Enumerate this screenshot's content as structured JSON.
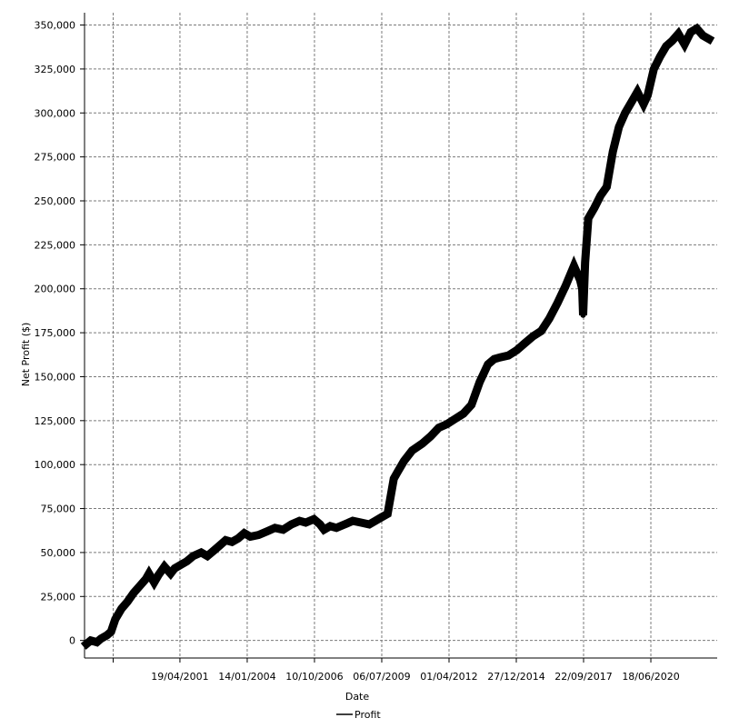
{
  "chart_data": {
    "type": "line",
    "title": "",
    "xlabel": "Date",
    "ylabel": "Net Profit ($)",
    "ylim": [
      -10000,
      357000
    ],
    "y_ticks": [
      0,
      25000,
      50000,
      75000,
      100000,
      125000,
      150000,
      175000,
      200000,
      225000,
      250000,
      275000,
      300000,
      325000,
      350000
    ],
    "y_tick_labels": [
      "0",
      "25,000",
      "50,000",
      "75,000",
      "100,000",
      "125,000",
      "150,000",
      "175,000",
      "200,000",
      "225,000",
      "250,000",
      "275,000",
      "300,000",
      "325,000",
      "350,000"
    ],
    "x_range": [
      "1997-06-01",
      "2023-03-01"
    ],
    "x_ticks": [
      "1998-08-01",
      "2001-04-19",
      "2004-01-14",
      "2006-10-10",
      "2009-07-06",
      "2012-04-01",
      "2014-12-27",
      "2017-09-22",
      "2020-06-18"
    ],
    "x_tick_labels": [
      "",
      "19/04/2001",
      "14/01/2004",
      "10/10/2006",
      "06/07/2009",
      "01/04/2012",
      "27/12/2014",
      "22/09/2017",
      "18/06/2020"
    ],
    "grid": true,
    "legend": {
      "position": "bottom-center"
    },
    "series": [
      {
        "name": "Profit",
        "color": "#000000",
        "x": [
          "1997-07-01",
          "1997-09-01",
          "1997-12-01",
          "1998-02-01",
          "1998-05-01",
          "1998-07-01",
          "1998-09-01",
          "1998-12-01",
          "1999-03-01",
          "1999-06-01",
          "1999-09-01",
          "1999-12-01",
          "2000-01-15",
          "2000-04-01",
          "2000-06-01",
          "2000-09-01",
          "2000-12-01",
          "2001-02-01",
          "2001-05-01",
          "2001-08-01",
          "2001-11-01",
          "2002-03-01",
          "2002-06-01",
          "2002-09-01",
          "2002-12-01",
          "2003-03-01",
          "2003-06-01",
          "2003-09-01",
          "2003-12-01",
          "2004-03-01",
          "2004-07-01",
          "2004-11-01",
          "2005-03-01",
          "2005-07-01",
          "2005-11-01",
          "2006-03-01",
          "2006-06-01",
          "2006-10-01",
          "2007-01-01",
          "2007-03-01",
          "2007-06-01",
          "2007-09-01",
          "2008-01-01",
          "2008-05-01",
          "2008-09-01",
          "2009-01-01",
          "2009-04-01",
          "2009-07-01",
          "2009-10-01",
          "2010-01-01",
          "2010-03-01",
          "2010-06-01",
          "2010-10-01",
          "2011-03-01",
          "2011-07-01",
          "2011-11-01",
          "2012-03-01",
          "2012-07-01",
          "2012-11-01",
          "2013-03-01",
          "2013-07-01",
          "2013-11-01",
          "2014-02-01",
          "2014-05-01",
          "2014-09-01",
          "2015-01-01",
          "2015-05-01",
          "2015-09-01",
          "2016-01-01",
          "2016-05-01",
          "2016-09-01",
          "2017-01-01",
          "2017-05-01",
          "2017-08-01",
          "2017-09-01",
          "2017-09-15",
          "2017-10-15",
          "2017-12-01",
          "2018-03-01",
          "2018-06-01",
          "2018-09-01",
          "2018-12-01",
          "2019-03-01",
          "2019-06-01",
          "2019-09-01",
          "2019-12-01",
          "2020-03-01",
          "2020-05-01",
          "2020-08-01",
          "2020-11-01",
          "2021-02-01",
          "2021-05-01",
          "2021-08-01",
          "2021-11-01",
          "2022-02-01",
          "2022-05-01",
          "2022-08-01",
          "2022-11-01"
        ],
        "values": [
          -2000,
          0,
          -1000,
          1000,
          3000,
          5000,
          12000,
          18000,
          22000,
          27000,
          31000,
          35000,
          38000,
          33000,
          37000,
          42000,
          38000,
          41000,
          43000,
          45000,
          48000,
          50000,
          48000,
          51000,
          54000,
          57000,
          56000,
          58000,
          61000,
          59000,
          60000,
          62000,
          64000,
          63000,
          66000,
          68000,
          67000,
          69000,
          66000,
          63000,
          65000,
          64000,
          66000,
          68000,
          67000,
          66000,
          68000,
          70000,
          72000,
          92000,
          96000,
          102000,
          108000,
          112000,
          116000,
          121000,
          123000,
          126000,
          129000,
          134000,
          147000,
          157000,
          160000,
          161000,
          162000,
          165000,
          169000,
          173000,
          176000,
          183000,
          192000,
          202000,
          213000,
          205000,
          200000,
          185000,
          215000,
          240000,
          246000,
          253000,
          258000,
          278000,
          292000,
          300000,
          306000,
          312000,
          305000,
          310000,
          325000,
          332000,
          338000,
          341000,
          345000,
          339000,
          346000,
          348000,
          344000,
          342000
        ]
      }
    ]
  }
}
